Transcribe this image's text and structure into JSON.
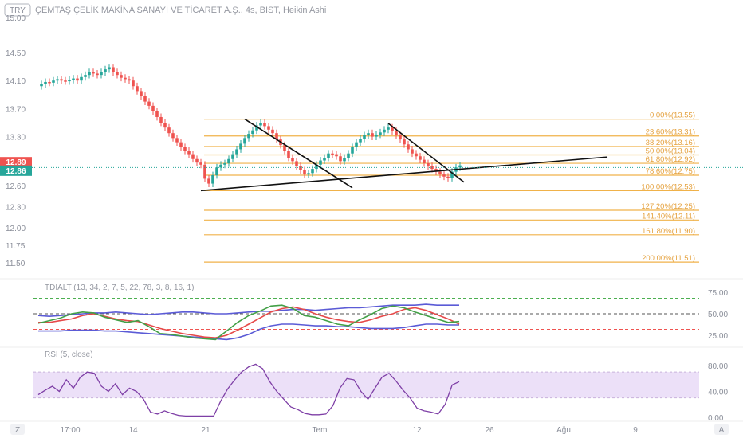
{
  "header": {
    "currency": "TRY",
    "title": "ÇEMTAŞ ÇELİK MAKİNA SANAYİ VE TİCARET A.Ş., 4s, BIST, Heikin Ashi"
  },
  "chart_data": [
    {
      "type": "candlestick",
      "title": "ÇEMTAŞ ÇELİK MAKİNA SANAYİ VE TİCARET A.Ş., 4s, BIST, Heikin Ashi",
      "yticks": [
        "15.00",
        "14.50",
        "14.10",
        "13.70",
        "13.30",
        "12.89",
        "12.86",
        "12.60",
        "12.30",
        "12.00",
        "11.75",
        "11.50"
      ],
      "ylim": [
        11.4,
        15.1
      ],
      "price_badges": [
        {
          "label": "12.89",
          "value": 12.89,
          "color": "#ef5350"
        },
        {
          "label": "12.86",
          "value": 12.86,
          "color": "#26a69a"
        }
      ],
      "xticks": [
        "Z",
        "17:00",
        "14",
        "21",
        "Tem",
        "12",
        "26",
        "Ağu",
        "9",
        "A"
      ],
      "fib_levels": [
        {
          "label": "0.00%(13.55)",
          "value": 13.55
        },
        {
          "label": "23.60%(13.31)",
          "value": 13.31
        },
        {
          "label": "38.20%(13.16)",
          "value": 13.16
        },
        {
          "label": "50.00%(13.04)",
          "value": 13.04
        },
        {
          "label": "61.80%(12.92)",
          "value": 12.92
        },
        {
          "label": "78.60%(12.75)",
          "value": 12.75
        },
        {
          "label": "100.00%(12.53)",
          "value": 12.53
        },
        {
          "label": "127.20%(12.25)",
          "value": 12.25
        },
        {
          "label": "141.40%(12.11)",
          "value": 12.11
        },
        {
          "label": "161.80%(11.90)",
          "value": 11.9
        },
        {
          "label": "200.00%(11.51)",
          "value": 11.51
        }
      ],
      "candles_close": [
        14.05,
        14.08,
        14.07,
        14.1,
        14.12,
        14.1,
        14.09,
        14.11,
        14.13,
        14.1,
        14.15,
        14.18,
        14.22,
        14.2,
        14.18,
        14.22,
        14.26,
        14.29,
        14.22,
        14.18,
        14.14,
        14.12,
        14.1,
        14.02,
        13.95,
        13.88,
        13.8,
        13.74,
        13.66,
        13.58,
        13.5,
        13.43,
        13.35,
        13.28,
        13.22,
        13.15,
        13.1,
        13.05,
        12.98,
        12.93,
        12.9,
        12.7,
        12.63,
        12.75,
        12.86,
        12.9,
        12.92,
        12.98,
        13.05,
        13.12,
        13.2,
        13.28,
        13.34,
        13.39,
        13.46,
        13.5,
        13.45,
        13.4,
        13.35,
        13.26,
        13.18,
        13.1,
        13.0,
        12.95,
        12.88,
        12.82,
        12.76,
        12.78,
        12.84,
        12.9,
        12.96,
        13.0,
        13.06,
        13.05,
        13.02,
        12.95,
        13.0,
        13.06,
        13.15,
        13.22,
        13.27,
        13.32,
        13.35,
        13.3,
        13.33,
        13.36,
        13.4,
        13.43,
        13.38,
        13.32,
        13.26,
        13.19,
        13.12,
        13.06,
        13.02,
        12.97,
        12.92,
        12.88,
        12.84,
        12.8,
        12.76,
        12.73,
        12.71,
        12.8,
        12.86,
        12.89
      ],
      "trend_lines": [
        {
          "from": [
            40,
            12.53
          ],
          "to": [
            142,
            13.01
          ],
          "color": "#111111"
        },
        {
          "from": [
            51,
            13.55
          ],
          "to": [
            78,
            12.57
          ],
          "color": "#111111"
        },
        {
          "from": [
            87,
            13.49
          ],
          "to": [
            106,
            12.65
          ],
          "color": "#111111"
        }
      ]
    },
    {
      "type": "line",
      "title": "TDIALT (13, 34, 2, 7, 5, 22, 78, 3, 8, 16, 1)",
      "yticks": [
        "75.00",
        "50.00",
        "25.00"
      ],
      "ylim": [
        17,
        81
      ],
      "levels": [
        {
          "value": 68,
          "color": "#4caf50"
        },
        {
          "value": 50,
          "color": "#555555"
        },
        {
          "value": 32,
          "color": "#ef5350"
        }
      ],
      "series": [
        {
          "color": "#5b5bd6",
          "values": [
            48,
            47,
            48,
            49,
            50,
            51,
            51,
            52,
            51,
            50,
            49,
            50,
            51,
            52,
            52,
            51,
            50,
            50,
            51,
            52,
            53,
            53,
            54,
            55,
            55,
            54,
            55,
            56,
            57,
            57,
            58,
            59,
            60,
            60,
            60,
            61,
            60,
            60,
            60
          ]
        },
        {
          "color": "#5b5bd6",
          "values": [
            30,
            30,
            30,
            31,
            31,
            31,
            30,
            30,
            29,
            28,
            27,
            26,
            25,
            24,
            23,
            22,
            21,
            20,
            22,
            26,
            32,
            36,
            38,
            38,
            37,
            36,
            36,
            35,
            35,
            34,
            33,
            33,
            33,
            34,
            36,
            38,
            38,
            37,
            37
          ]
        },
        {
          "color": "#e64a4a",
          "values": [
            40,
            40,
            42,
            44,
            48,
            50,
            47,
            44,
            42,
            41,
            37,
            33,
            30,
            27,
            25,
            23,
            22,
            25,
            31,
            38,
            45,
            52,
            56,
            58,
            55,
            50,
            46,
            43,
            41,
            40,
            43,
            47,
            50,
            55,
            57,
            54,
            49,
            44,
            38
          ]
        },
        {
          "color": "#43a047",
          "values": [
            39,
            42,
            45,
            50,
            52,
            51,
            46,
            43,
            40,
            42,
            35,
            27,
            26,
            24,
            22,
            21,
            20,
            30,
            40,
            48,
            53,
            59,
            60,
            56,
            48,
            46,
            42,
            38,
            36,
            43,
            49,
            56,
            59,
            57,
            52,
            48,
            44,
            40,
            41
          ]
        }
      ]
    },
    {
      "type": "line",
      "title": "RSI (5, close)",
      "yticks": [
        "80.00",
        "40.00",
        "0.00"
      ],
      "ylim": [
        0,
        90
      ],
      "band": [
        30,
        70
      ],
      "series": [
        {
          "color": "#7e3fa6",
          "values": [
            35,
            42,
            48,
            40,
            58,
            45,
            62,
            70,
            68,
            48,
            40,
            52,
            35,
            45,
            40,
            28,
            8,
            5,
            10,
            6,
            3,
            2,
            2,
            2,
            2,
            2,
            25,
            44,
            58,
            70,
            78,
            82,
            75,
            55,
            40,
            28,
            16,
            12,
            6,
            4,
            4,
            5,
            18,
            45,
            60,
            58,
            40,
            28,
            45,
            62,
            68,
            56,
            42,
            30,
            14,
            10,
            8,
            5,
            20,
            50,
            55
          ]
        }
      ]
    }
  ]
}
